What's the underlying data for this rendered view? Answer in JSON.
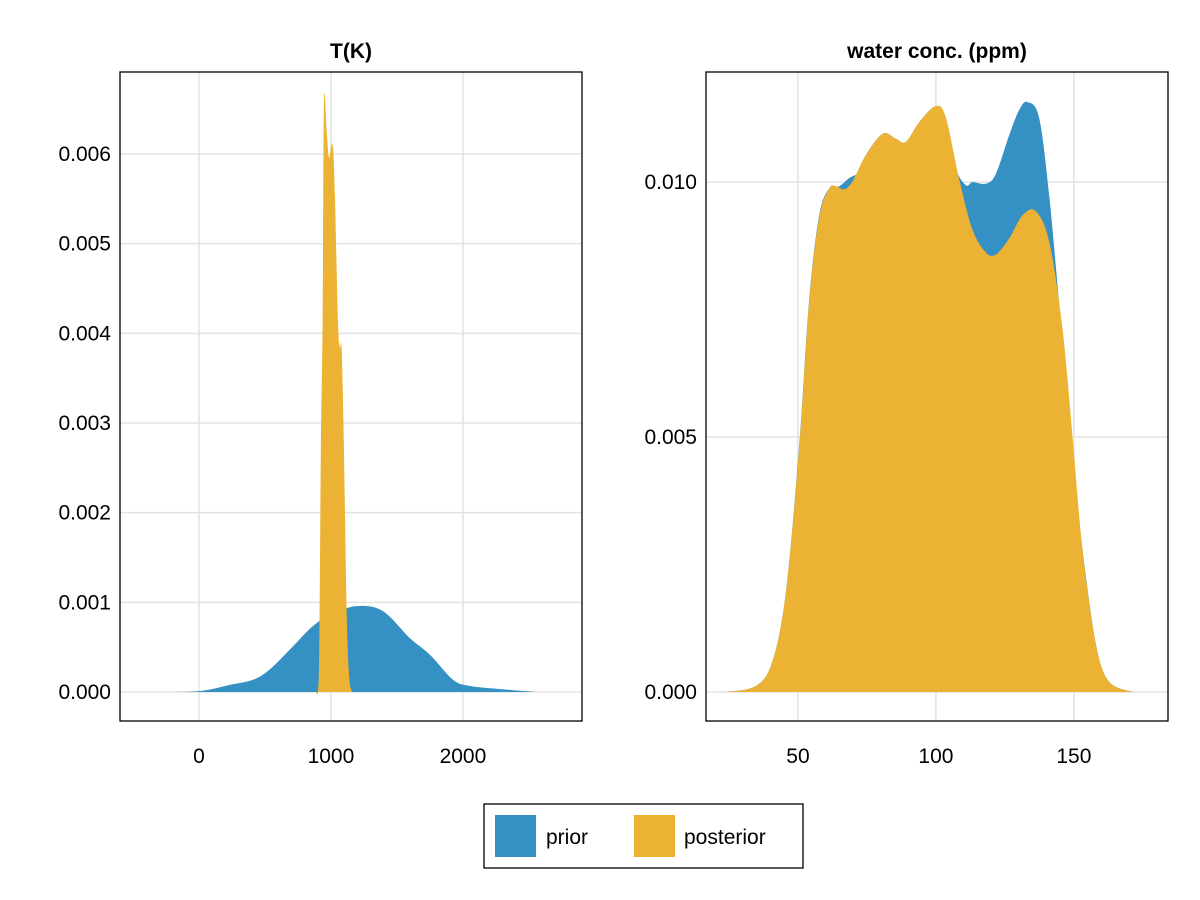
{
  "colors": {
    "prior": "#3590c4",
    "posterior": "#ebb233"
  },
  "legend": {
    "position": "bottom-center",
    "entries": [
      "prior",
      "posterior"
    ]
  },
  "chart_data": [
    {
      "type": "area",
      "title": "T(K)",
      "xlabel": "",
      "ylabel": "",
      "xlim": [
        -598,
        2902
      ],
      "ylim": [
        -0.000323,
        0.006914
      ],
      "grid": true,
      "xticks": [
        {
          "v": 0,
          "label": "0"
        },
        {
          "v": 1000,
          "label": "1000"
        },
        {
          "v": 2000,
          "label": "2000"
        }
      ],
      "yticks": [
        {
          "v": 0,
          "label": "0.000"
        },
        {
          "v": 0.001,
          "label": "0.001"
        },
        {
          "v": 0.002,
          "label": "0.002"
        },
        {
          "v": 0.003,
          "label": "0.003"
        },
        {
          "v": 0.004,
          "label": "0.004"
        },
        {
          "v": 0.005,
          "label": "0.005"
        },
        {
          "v": 0.006,
          "label": "0.006"
        }
      ],
      "series": [
        {
          "name": "prior",
          "x": [
            -346,
            0,
            235,
            412,
            538,
            712,
            864,
            1015,
            1205,
            1394,
            1598,
            1750,
            1924,
            2050,
            2255,
            2558
          ],
          "y": [
            0,
            1e-05,
            8e-05,
            0.000138,
            0.000254,
            0.000509,
            0.000737,
            0.000879,
            0.00096,
            0.000902,
            0.000601,
            0.000416,
            0.000139,
            6.9e-05,
            3.7e-05,
            0
          ]
        },
        {
          "name": "posterior",
          "x": [
            886,
            909,
            924,
            937,
            947,
            967,
            985,
            1013,
            1030,
            1053,
            1068,
            1081,
            1098,
            1119,
            1139,
            1161
          ],
          "y": [
            0,
            0.000254,
            0.00275,
            0.00414,
            0.00657,
            0.00627,
            0.00596,
            0.0061,
            0.00553,
            0.00414,
            0.00384,
            0.00383,
            0.00275,
            0.0009,
            0.00016,
            0
          ]
        }
      ]
    },
    {
      "type": "area",
      "title": "water conc. (ppm)",
      "xlabel": "",
      "ylabel": "",
      "xlim": [
        16.67,
        184.1
      ],
      "ylim": [
        -0.000569,
        0.01216
      ],
      "grid": true,
      "xticks": [
        {
          "v": 50,
          "label": "50"
        },
        {
          "v": 100,
          "label": "100"
        },
        {
          "v": 150,
          "label": "150"
        }
      ],
      "yticks": [
        {
          "v": 0,
          "label": "0.000"
        },
        {
          "v": 0.005,
          "label": "0.005"
        },
        {
          "v": 0.01,
          "label": "0.010"
        }
      ],
      "series": [
        {
          "name": "prior",
          "x": [
            23.9,
            34.8,
            40.8,
            45.7,
            50.5,
            54.1,
            57.7,
            61.4,
            65.0,
            68.6,
            72.2,
            74.6,
            80.7,
            85.5,
            89.1,
            94.0,
            100.0,
            103.6,
            107.2,
            110.9,
            113.3,
            118.1,
            121.7,
            126.6,
            130.2,
            133.2,
            137.4,
            141.1,
            144.7,
            148.3,
            150.7,
            153.1,
            158.0,
            162.8,
            171.3
          ],
          "y": [
            0,
            0.00012,
            0.00061,
            0.00199,
            0.00488,
            0.00772,
            0.00935,
            0.00988,
            0.00992,
            0.01008,
            0.0102,
            0.01053,
            0.01095,
            0.01085,
            0.01079,
            0.01118,
            0.01149,
            0.01126,
            0.01028,
            0.00994,
            0.01,
            0.00997,
            0.01016,
            0.01093,
            0.01142,
            0.01157,
            0.01126,
            0.00971,
            0.0076,
            0.00565,
            0.00402,
            0.0028,
            0.00093,
            0.0002,
            0
          ]
        },
        {
          "name": "posterior",
          "x": [
            23.9,
            34.8,
            40.8,
            45.7,
            50.5,
            54.1,
            57.7,
            61.4,
            63.8,
            66.8,
            69.8,
            74.6,
            80.7,
            85.5,
            89.1,
            94.0,
            100.0,
            103.6,
            108.5,
            113.3,
            118.1,
            121.7,
            126.6,
            131.4,
            136.2,
            141.1,
            145.9,
            149.5,
            153.1,
            158.0,
            162.8,
            171.3
          ],
          "y": [
            0,
            0.00012,
            0.00061,
            0.00199,
            0.00484,
            0.00768,
            0.00931,
            0.00988,
            0.00992,
            0.00986,
            0.01002,
            0.01053,
            0.01095,
            0.01085,
            0.01079,
            0.01118,
            0.01149,
            0.01126,
            0.01004,
            0.00906,
            0.00862,
            0.00858,
            0.0089,
            0.00935,
            0.00943,
            0.00882,
            0.00711,
            0.005,
            0.0028,
            0.00093,
            0.0002,
            0
          ]
        }
      ]
    }
  ]
}
